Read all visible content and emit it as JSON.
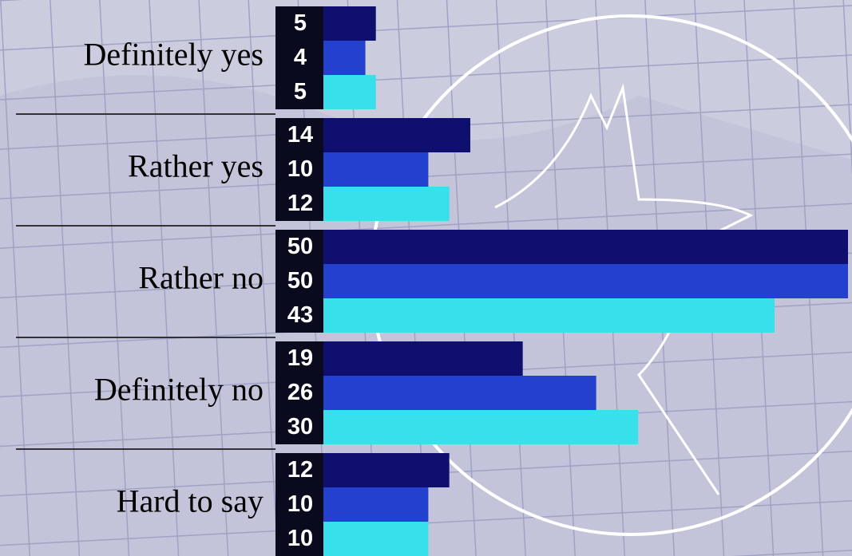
{
  "chart_data": {
    "type": "bar",
    "orientation": "horizontal",
    "categories": [
      "Definitely yes",
      "Rather yes",
      "Rather no",
      "Definitely no",
      "Hard to say"
    ],
    "series": [
      {
        "color": "#0e0f6e",
        "values": [
          5,
          14,
          50,
          19,
          12
        ]
      },
      {
        "color": "#2340cf",
        "values": [
          4,
          10,
          50,
          26,
          10
        ]
      },
      {
        "color": "#38e0ec",
        "values": [
          5,
          12,
          43,
          30,
          10
        ]
      }
    ]
  }
}
